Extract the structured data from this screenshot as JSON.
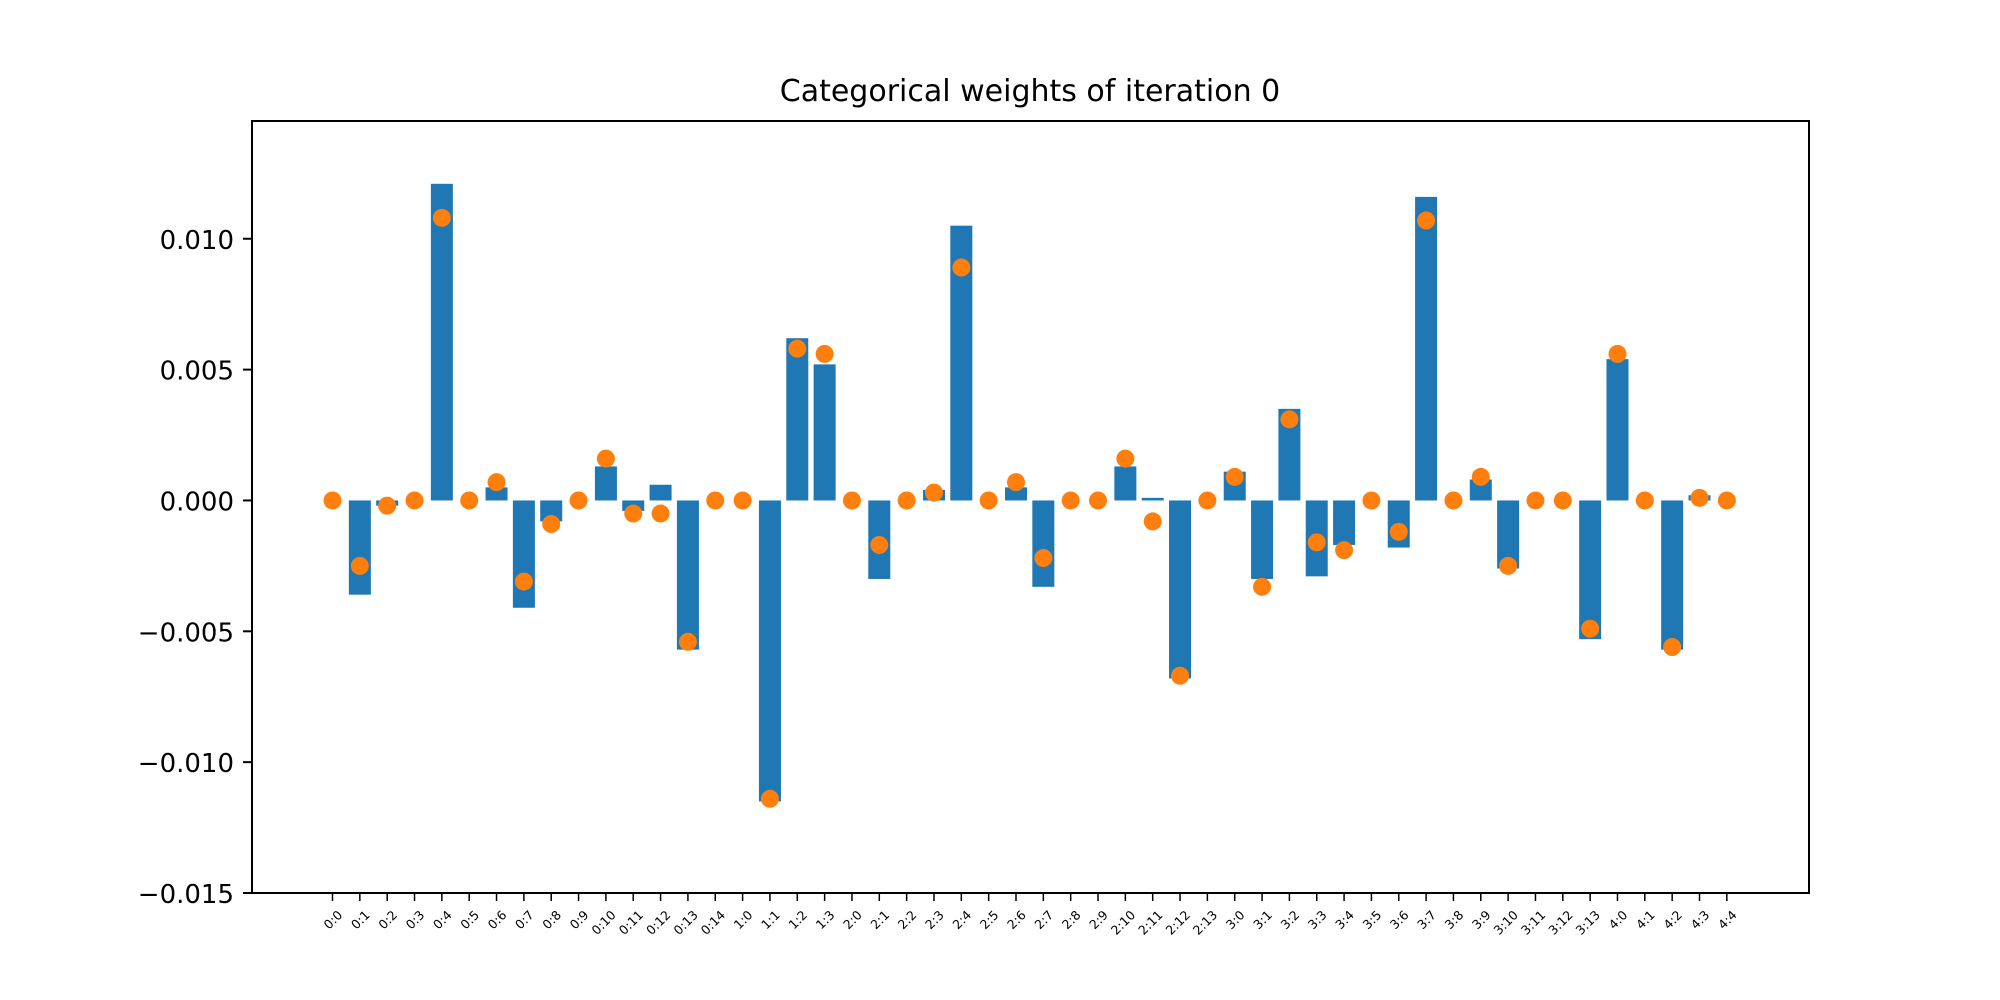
{
  "chart_data": {
    "type": "bar",
    "title": "Categorical weights of iteration 0",
    "xlabel": "",
    "ylabel": "",
    "ylim": [
      -0.015,
      0.0145
    ],
    "yticks": [
      "0.010",
      "0.005",
      "0.000",
      "−0.005",
      "−0.010",
      "−0.015"
    ],
    "ytick_values": [
      0.01,
      0.005,
      0.0,
      -0.005,
      -0.01,
      -0.015
    ],
    "grid": false,
    "colors": {
      "bars": "#1f77b4",
      "points": "#ff7f0e"
    },
    "categories": [
      "0:0",
      "0:1",
      "0:2",
      "0:3",
      "0:4",
      "0:5",
      "0:6",
      "0:7",
      "0:8",
      "0:9",
      "0:10",
      "0:11",
      "0:12",
      "0:13",
      "0:14",
      "1:0",
      "1:1",
      "1:2",
      "1:3",
      "2:0",
      "2:1",
      "2:2",
      "2:3",
      "2:4",
      "2:5",
      "2:6",
      "2:7",
      "2:8",
      "2:9",
      "2:10",
      "2:11",
      "2:12",
      "2:13",
      "3:0",
      "3:1",
      "3:2",
      "3:3",
      "3:4",
      "3:5",
      "3:6",
      "3:7",
      "3:8",
      "3:9",
      "3:10",
      "3:11",
      "3:12",
      "3:13",
      "4:0",
      "4:1",
      "4:2",
      "4:3",
      "4:4"
    ],
    "bars": [
      0,
      -0.0036,
      -0.0002,
      0,
      0.0121,
      0,
      0.0005,
      -0.0041,
      -0.0008,
      0,
      0.0013,
      -0.0004,
      0.0006,
      -0.0057,
      0,
      0,
      -0.0115,
      0.0062,
      0.0052,
      0,
      -0.003,
      0,
      0.0004,
      0.0105,
      0,
      0.0005,
      -0.0033,
      0,
      0,
      0.0013,
      0.0001,
      -0.0068,
      0,
      0.0011,
      -0.003,
      0.0035,
      -0.0029,
      -0.0017,
      0,
      -0.0018,
      0.0116,
      0,
      0.0008,
      -0.0026,
      0,
      0,
      -0.0053,
      0.0054,
      0,
      -0.0057,
      0.0002,
      0
    ],
    "points": [
      0,
      -0.0025,
      -0.0002,
      0,
      0.0108,
      0,
      0.0007,
      -0.0031,
      -0.0009,
      0,
      0.0016,
      -0.0005,
      -0.0005,
      -0.0054,
      0,
      0,
      -0.0114,
      0.0058,
      0.0056,
      0,
      -0.0017,
      0,
      0.0003,
      0.0089,
      0,
      0.0007,
      -0.0022,
      0,
      0,
      0.0016,
      -0.0008,
      -0.0067,
      0,
      0.0009,
      -0.0033,
      0.0031,
      -0.0016,
      -0.0019,
      0,
      -0.0012,
      0.0107,
      0,
      0.0009,
      -0.0025,
      0,
      0,
      -0.0049,
      0.0056,
      0,
      -0.0056,
      0.0001,
      0
    ]
  }
}
